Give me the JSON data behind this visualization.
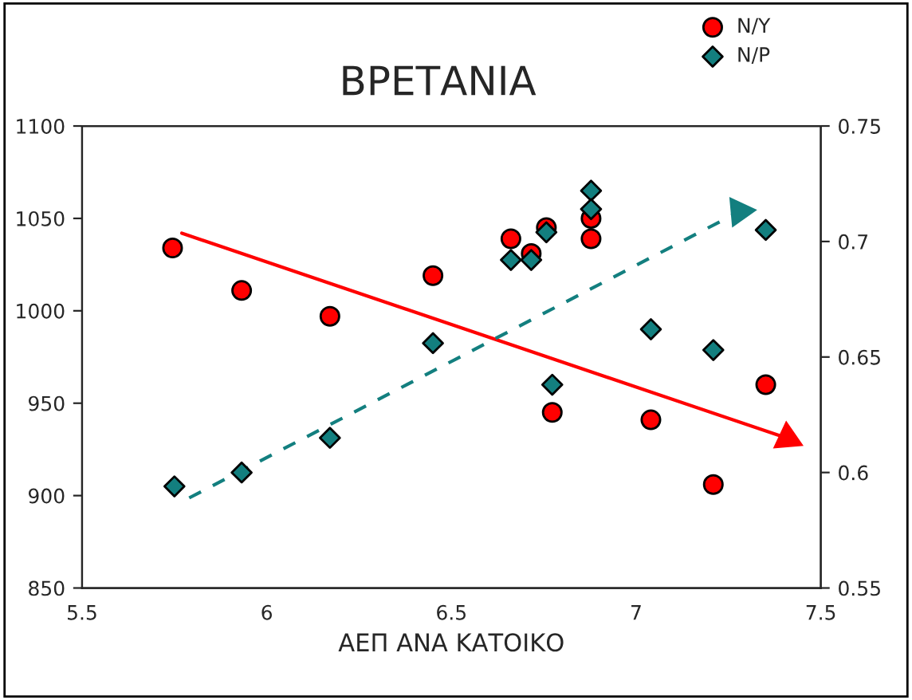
{
  "chart_data": {
    "type": "scatter",
    "title": "ΒΡΕΤΑΝΙΑ",
    "xlabel": "ΑΕΠ ΑΝΑ ΚΑΤΟΙΚΟ",
    "xlim": [
      5.5,
      7.5
    ],
    "xticks": [
      5.5,
      6,
      6.5,
      7,
      7.5
    ],
    "ylim": [
      850,
      1100
    ],
    "yticks": [
      850,
      900,
      950,
      1000,
      1050,
      1100
    ],
    "y2lim": [
      0.55,
      0.75
    ],
    "y2ticks": [
      0.55,
      0.6,
      0.65,
      0.7,
      0.75
    ],
    "grid": false,
    "legend": "top right",
    "series": [
      {
        "name": "Ν/Υ",
        "color": "#ff0000",
        "marker": "circle",
        "x": [
          5.745,
          5.932,
          6.171,
          6.45,
          6.661,
          6.716,
          6.757,
          6.878,
          6.878,
          6.773,
          7.04,
          7.209,
          7.351
        ],
        "values": [
          1034,
          1011,
          997,
          1019,
          1039,
          1031,
          1045,
          1050,
          1039,
          945,
          941,
          906,
          960
        ]
      },
      {
        "name": "Ν/Ρ",
        "color": "#137f7f",
        "marker": "diamond",
        "axis": "y2",
        "x": [
          5.75,
          5.932,
          6.171,
          6.45,
          6.661,
          6.716,
          6.757,
          6.878,
          6.878,
          6.773,
          7.04,
          7.209,
          7.351
        ],
        "values": [
          0.594,
          0.6,
          0.615,
          0.656,
          0.692,
          0.692,
          0.704,
          0.722,
          0.714,
          0.638,
          0.662,
          0.653,
          0.705
        ]
      },
      {
        "type": "line",
        "color": "#ff0000",
        "line_style": "solid",
        "x": [
          5.77,
          7.41
        ],
        "values": [
          1042,
          931
        ]
      },
      {
        "type": "line",
        "color": "#137f7f",
        "line_style": "dashed",
        "axis": "y2",
        "x": [
          5.79,
          7.28
        ],
        "values": [
          0.589,
          0.713
        ]
      }
    ]
  }
}
